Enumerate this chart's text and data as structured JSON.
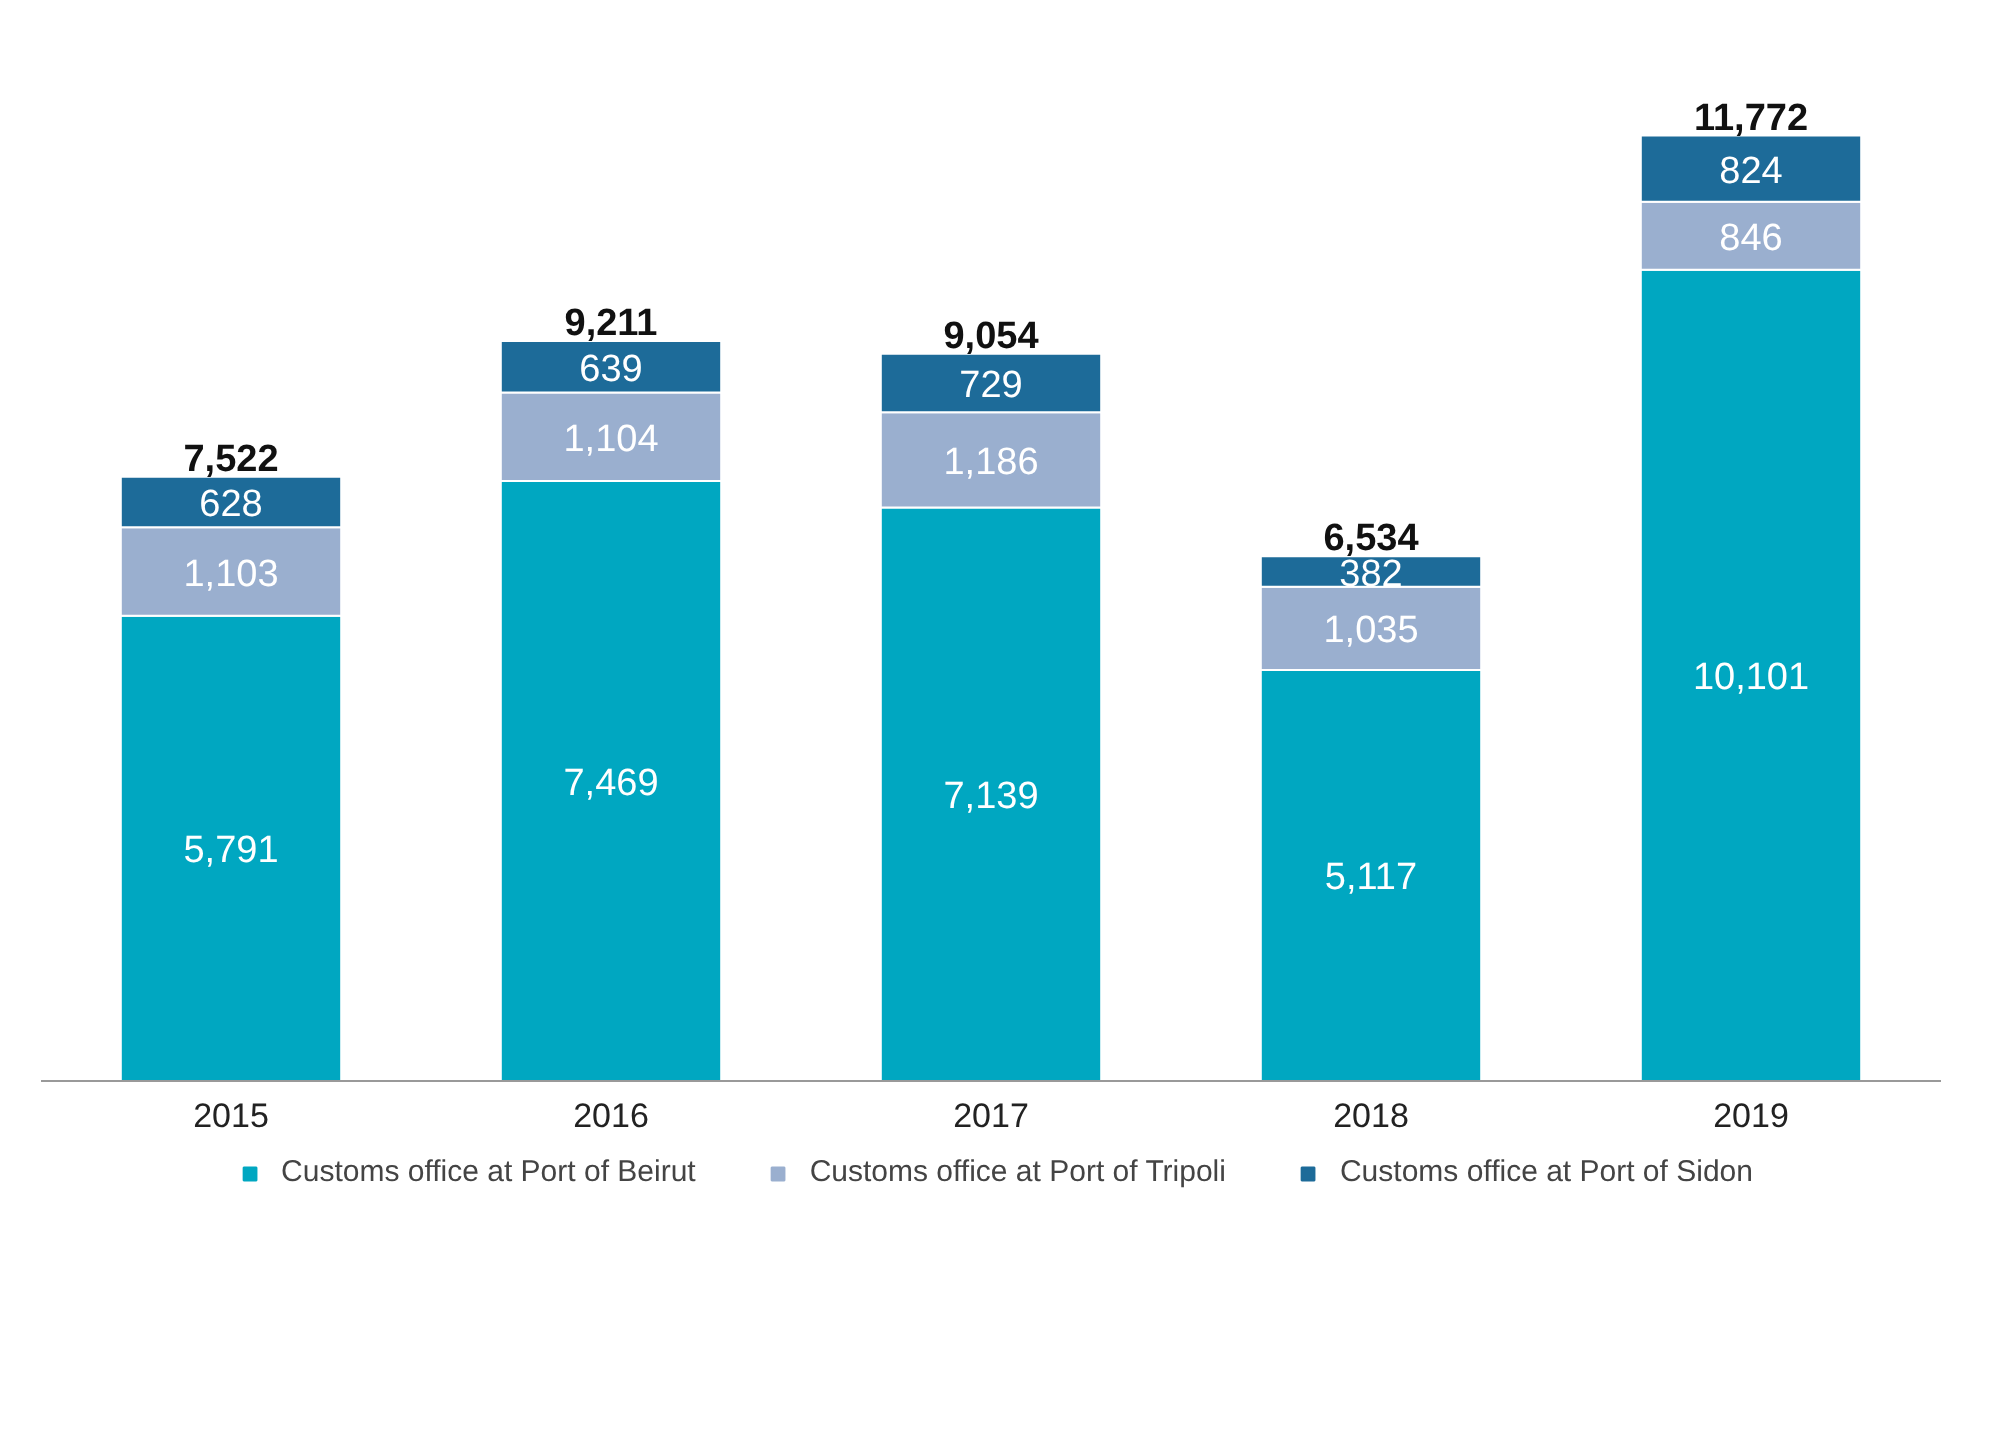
{
  "chart_data": {
    "type": "bar",
    "stacked": true,
    "categories": [
      "2015",
      "2016",
      "2017",
      "2018",
      "2019"
    ],
    "series": [
      {
        "name": "Customs office at Port of Beirut",
        "color": "#00a7c1",
        "values": [
          5791,
          7469,
          7139,
          5117,
          10101
        ],
        "value_labels": [
          "5,791",
          "7,469",
          "7,139",
          "5,117",
          "10,101"
        ]
      },
      {
        "name": "Customs office at Port of Tripoli",
        "color": "#9aafcf",
        "values": [
          1103,
          1104,
          1186,
          1035,
          846
        ],
        "value_labels": [
          "1,103",
          "1,104",
          "1,186",
          "1,035",
          "846"
        ]
      },
      {
        "name": "Customs office at Port of Sidon",
        "color": "#1d6b99",
        "values": [
          628,
          639,
          729,
          382,
          824
        ],
        "value_labels": [
          "628",
          "639",
          "729",
          "382",
          "824"
        ]
      }
    ],
    "totals": [
      "7,522",
      "9,211",
      "9,054",
      "6,534",
      "11,772"
    ],
    "legend": "bottom",
    "grid": false,
    "tick_labels": "x"
  }
}
